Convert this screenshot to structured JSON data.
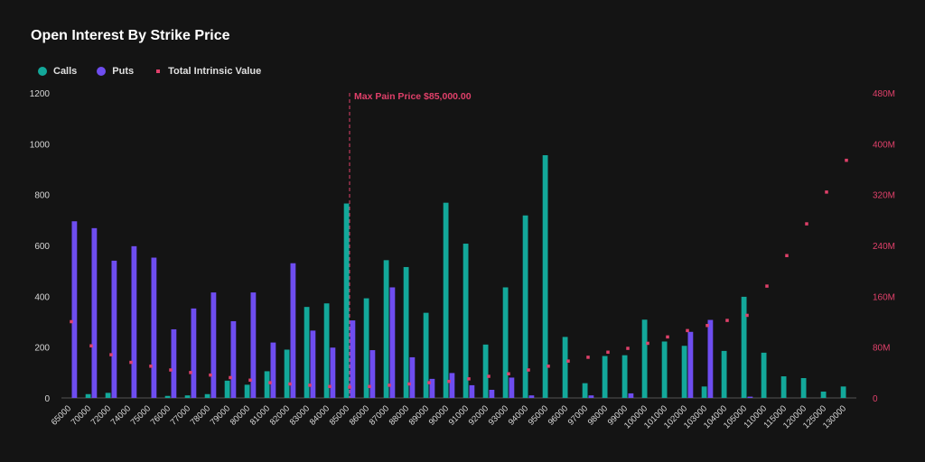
{
  "chart_data": {
    "type": "bar",
    "title": "Open Interest By Strike Price",
    "categories": [
      "65000",
      "70000",
      "72000",
      "74000",
      "75000",
      "76000",
      "77000",
      "78000",
      "79000",
      "80000",
      "81000",
      "82000",
      "83000",
      "84000",
      "85000",
      "86000",
      "87000",
      "88000",
      "89000",
      "90000",
      "91000",
      "92000",
      "93000",
      "94000",
      "95000",
      "96000",
      "97000",
      "98000",
      "99000",
      "100000",
      "101000",
      "102000",
      "103000",
      "104000",
      "105000",
      "110000",
      "115000",
      "120000",
      "125000",
      "130000"
    ],
    "series": [
      {
        "name": "Calls",
        "color": "#13a89a",
        "axis": "left",
        "values": [
          0,
          15,
          20,
          0,
          0,
          8,
          10,
          15,
          68,
          52,
          105,
          190,
          358,
          372,
          765,
          392,
          542,
          515,
          335,
          768,
          607,
          210,
          435,
          718,
          955,
          240,
          58,
          165,
          168,
          308,
          222,
          205,
          45,
          185,
          398,
          178,
          85,
          78,
          25,
          45
        ]
      },
      {
        "name": "Puts",
        "color": "#6e4df0",
        "axis": "left",
        "values": [
          695,
          668,
          540,
          597,
          552,
          270,
          352,
          415,
          302,
          415,
          218,
          530,
          265,
          198,
          305,
          188,
          435,
          160,
          75,
          98,
          50,
          32,
          80,
          10,
          0,
          0,
          10,
          0,
          18,
          0,
          0,
          260,
          307,
          0,
          5,
          0,
          0,
          0,
          0,
          0
        ]
      },
      {
        "name": "Total Intrinsic Value",
        "color": "#e0406a",
        "axis": "right",
        "values": [
          120,
          82,
          68,
          56,
          50,
          44,
          40,
          36,
          32,
          28,
          24,
          22,
          20,
          18,
          17,
          18,
          20,
          22,
          24,
          26,
          30,
          34,
          38,
          44,
          50,
          58,
          64,
          72,
          78,
          86,
          96,
          106,
          114,
          122,
          130,
          176,
          224,
          274,
          324,
          374
        ]
      }
    ],
    "ylim": [
      0,
      1200
    ],
    "yticks": [
      0,
      200,
      400,
      600,
      800,
      1000,
      1200
    ],
    "y2lim": [
      0,
      480
    ],
    "y2ticks": [
      0,
      80,
      160,
      240,
      320,
      400,
      480
    ],
    "y2ticklabels": [
      "0",
      "80M",
      "160M",
      "240M",
      "320M",
      "400M",
      "480M"
    ],
    "annotation": {
      "label": "Max Pain Price $85,000.00",
      "category": "85000",
      "color": "#e0406a"
    },
    "legend_position": "top-left",
    "grid": false
  }
}
